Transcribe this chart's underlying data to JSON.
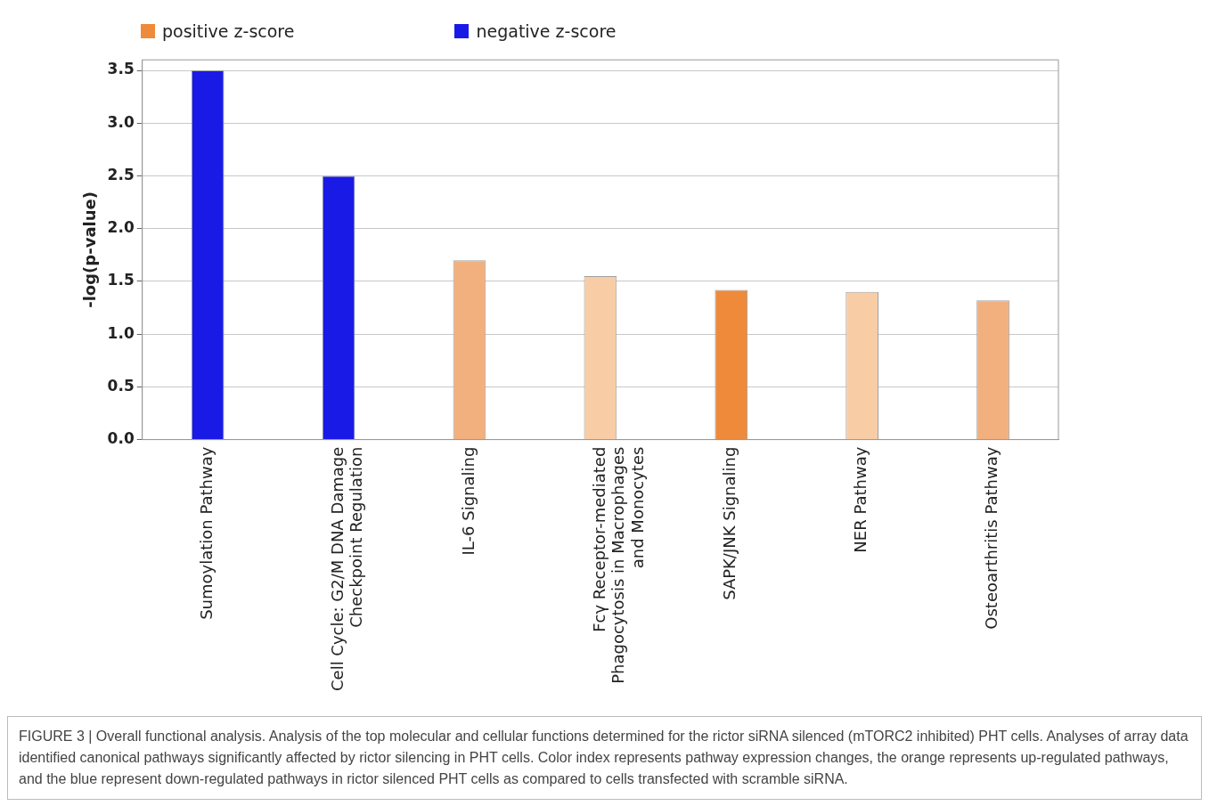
{
  "chart_data": {
    "type": "bar",
    "categories": [
      "Sumoylation Pathway",
      "Cell Cycle: G2/M DNA Damage\nCheckpoint Regulation",
      "IL-6 Signaling",
      "Fcγ Receptor-mediated\nPhagocytosis in Macrophages\nand Monocytes",
      "SAPK/JNK Signaling",
      "NER Pathway",
      "Osteoarthritis Pathway"
    ],
    "series": [
      {
        "name": "positive z-score",
        "color": "#ee8a3a",
        "colors": [
          "#f2b07f",
          "#f2b07f",
          "#f2b07f",
          "#f8cda6",
          "#ee8a3a",
          "#f8cda6",
          "#f2b07f"
        ],
        "values": [
          null,
          null,
          1.7,
          1.55,
          1.42,
          1.4,
          1.32
        ]
      },
      {
        "name": "negative z-score",
        "color": "#1a1ae6",
        "colors": [
          "#1a1ae6",
          "#1a1ae6",
          "#1a1ae6",
          "#1a1ae6",
          "#1a1ae6",
          "#1a1ae6",
          "#1a1ae6"
        ],
        "values": [
          3.5,
          2.5,
          null,
          null,
          null,
          null,
          null
        ]
      }
    ],
    "ylabel": "-log(p-value)",
    "ylim": [
      0,
      3.6
    ],
    "yticks": [
      {
        "value": 0,
        "label": "0.0"
      },
      {
        "value": 0.5,
        "label": "0.5"
      },
      {
        "value": 1,
        "label": "1.0"
      },
      {
        "value": 1.5,
        "label": "1.5"
      },
      {
        "value": 2,
        "label": "2.0"
      },
      {
        "value": 2.5,
        "label": "2.5"
      },
      {
        "value": 3,
        "label": "3.0"
      },
      {
        "value": 3.5,
        "label": "3.5"
      }
    ],
    "grid": "y",
    "legend": "top left",
    "annotations": [
      "FIGURE 3 | Overall functional analysis. Analysis of the top molecular and cellular functions determined for the rictor siRNA silenced (mTORC2 inhibited) PHT cells. Analyses of array data identified canonical pathways significantly affected by rictor silencing in PHT cells. Color index represents pathway expression changes, the orange represents up-regulated pathways, and the blue represent down-regulated pathways in rictor silenced PHT cells as compared to cells transfected with scramble siRNA."
    ]
  }
}
